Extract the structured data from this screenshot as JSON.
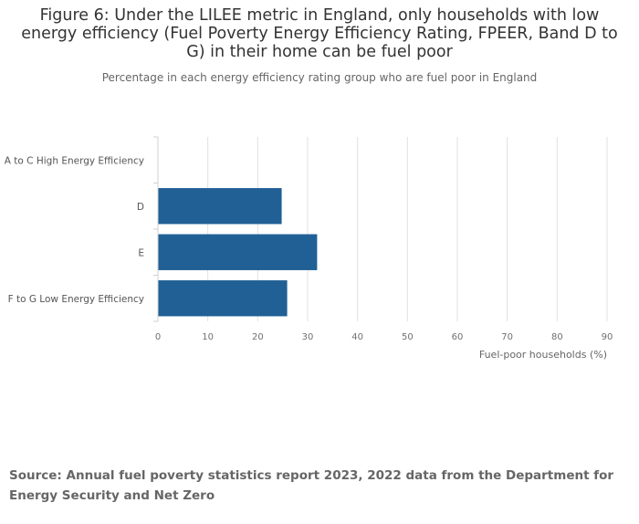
{
  "title": "Figure 6: Under the LILEE metric in England, only households with low energy efficiency (Fuel Poverty Energy Efficiency Rating, FPEER, Band D to G) in their home can be fuel poor",
  "subtitle": "Percentage in each energy efficiency rating group who are fuel poor in England",
  "source": "Source: Annual fuel poverty statistics report 2023, 2022 data from the Department for Energy Security and Net Zero",
  "chart_data": {
    "type": "bar",
    "orientation": "horizontal",
    "categories": [
      "A to C High Energy Efficiency",
      "D",
      "E",
      "F to G Low Energy Efficiency"
    ],
    "values": [
      0,
      24.8,
      31.9,
      25.9
    ],
    "xlabel": "Fuel-poor households (%)",
    "ylabel": "",
    "xlim": [
      0,
      90
    ],
    "xticks": [
      0,
      10,
      20,
      30,
      40,
      50,
      60,
      70,
      80,
      90
    ],
    "grid": "vertical",
    "bar_color": "#206095"
  }
}
